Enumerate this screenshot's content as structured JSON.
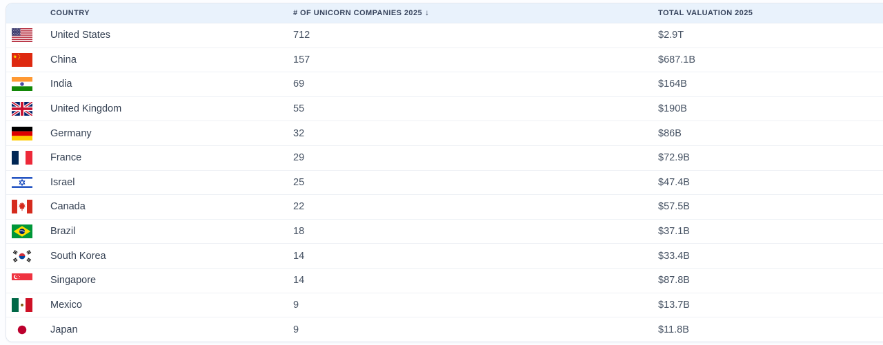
{
  "table": {
    "columns": [
      {
        "label": "COUNTRY"
      },
      {
        "label": "# OF UNICORN COMPANIES 2025",
        "sort_icon": "↓"
      },
      {
        "label": "TOTAL VALUATION 2025"
      }
    ],
    "rows": [
      {
        "flag": "us",
        "country": "United States",
        "unicorns": "712",
        "valuation": "$2.9T"
      },
      {
        "flag": "cn",
        "country": "China",
        "unicorns": "157",
        "valuation": "$687.1B"
      },
      {
        "flag": "in",
        "country": "India",
        "unicorns": "69",
        "valuation": "$164B"
      },
      {
        "flag": "gb",
        "country": "United Kingdom",
        "unicorns": "55",
        "valuation": "$190B"
      },
      {
        "flag": "de",
        "country": "Germany",
        "unicorns": "32",
        "valuation": "$86B"
      },
      {
        "flag": "fr",
        "country": "France",
        "unicorns": "29",
        "valuation": "$72.9B"
      },
      {
        "flag": "il",
        "country": "Israel",
        "unicorns": "25",
        "valuation": "$47.4B"
      },
      {
        "flag": "ca",
        "country": "Canada",
        "unicorns": "22",
        "valuation": "$57.5B"
      },
      {
        "flag": "br",
        "country": "Brazil",
        "unicorns": "18",
        "valuation": "$37.1B"
      },
      {
        "flag": "kr",
        "country": "South Korea",
        "unicorns": "14",
        "valuation": "$33.4B"
      },
      {
        "flag": "sg",
        "country": "Singapore",
        "unicorns": "14",
        "valuation": "$87.8B"
      },
      {
        "flag": "mx",
        "country": "Mexico",
        "unicorns": "9",
        "valuation": "$13.7B"
      },
      {
        "flag": "jp",
        "country": "Japan",
        "unicorns": "9",
        "valuation": "$11.8B"
      }
    ]
  },
  "colors": {
    "header_bg": "#e9f2fc",
    "header_text": "#36435c",
    "row_bg": "#ffffff",
    "row_border": "#eef1f5",
    "card_border": "#e2e8f0",
    "country_text": "#333f51",
    "number_text": "#47536a"
  }
}
